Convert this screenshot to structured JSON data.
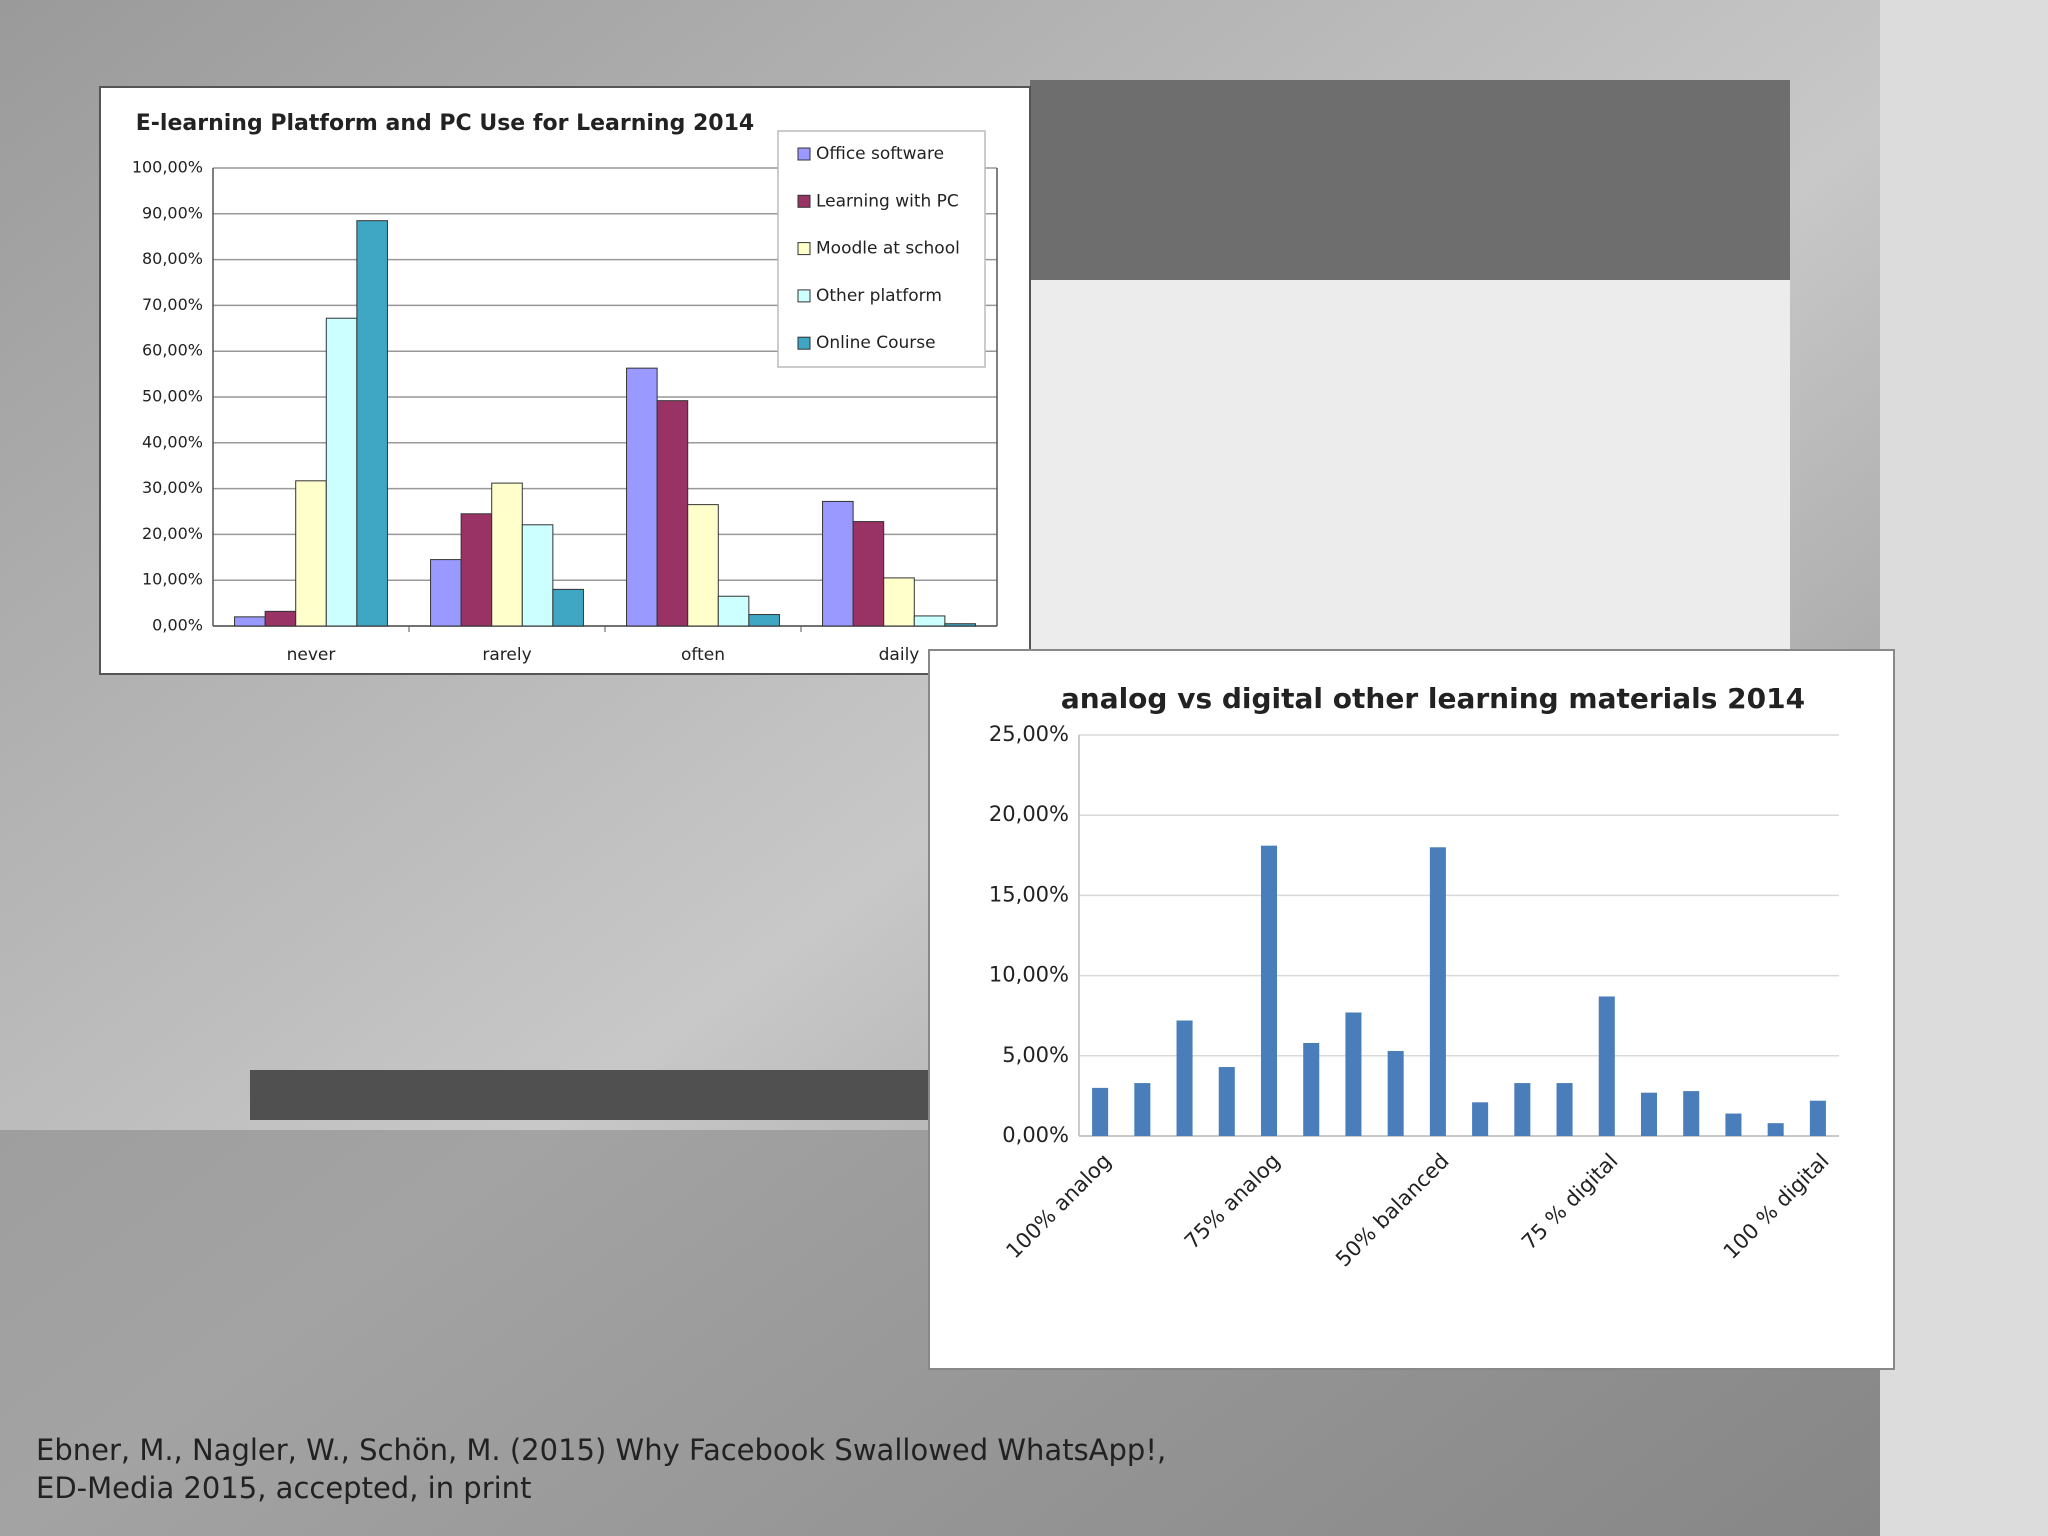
{
  "chart_data": [
    {
      "type": "bar",
      "title": "E-learning Platform and PC Use for Learning 2014",
      "categories": [
        "never",
        "rarely",
        "often",
        "daily"
      ],
      "series": [
        {
          "name": "Office software",
          "color": "#9999ff",
          "values": [
            2,
            14.5,
            56.3,
            27.2
          ]
        },
        {
          "name": "Learning with PC",
          "color": "#993366",
          "values": [
            3.2,
            24.5,
            49.2,
            22.8
          ]
        },
        {
          "name": "Moodle at school",
          "color": "#ffffcc",
          "values": [
            31.7,
            31.2,
            26.5,
            10.5
          ]
        },
        {
          "name": "Other platform",
          "color": "#ccffff",
          "values": [
            67.2,
            22.1,
            6.5,
            2.2
          ]
        },
        {
          "name": "Online Course",
          "color": "#3fa7c4",
          "values": [
            88.5,
            8,
            2.5,
            0.5
          ]
        }
      ],
      "ylim": [
        0,
        100
      ],
      "yticks": [
        {
          "value": 0,
          "label": "0,00%"
        },
        {
          "value": 10,
          "label": "10,00%"
        },
        {
          "value": 20,
          "label": "20,00%"
        },
        {
          "value": 30,
          "label": "30,00%"
        },
        {
          "value": 40,
          "label": "40,00%"
        },
        {
          "value": 50,
          "label": "50,00%"
        },
        {
          "value": 60,
          "label": "60,00%"
        },
        {
          "value": 70,
          "label": "70,00%"
        },
        {
          "value": 80,
          "label": "80,00%"
        },
        {
          "value": 90,
          "label": "90,00%"
        },
        {
          "value": 100,
          "label": "100,00%"
        }
      ],
      "grid": true,
      "legend": "top-right"
    },
    {
      "type": "bar",
      "title": "analog vs digital other learning materials 2014",
      "categories": [
        "100% analog",
        null,
        null,
        null,
        "75% analog",
        null,
        null,
        null,
        "50% balanced",
        null,
        null,
        null,
        "75 % digital",
        null,
        null,
        null,
        null,
        "100 % digital"
      ],
      "values": [
        3.0,
        3.3,
        7.2,
        4.3,
        18.1,
        5.8,
        7.7,
        5.3,
        18.0,
        2.1,
        3.3,
        3.3,
        8.7,
        2.7,
        2.8,
        1.4,
        0.8,
        2.2
      ],
      "color": "#4a7ebb",
      "ylim": [
        0,
        25
      ],
      "yticks": [
        {
          "value": 0,
          "label": "0,00%"
        },
        {
          "value": 5,
          "label": "5,00%"
        },
        {
          "value": 10,
          "label": "10,00%"
        },
        {
          "value": 15,
          "label": "15,00%"
        },
        {
          "value": 20,
          "label": "20,00%"
        },
        {
          "value": 25,
          "label": "25,00%"
        }
      ],
      "grid": true
    }
  ],
  "caption": [
    "Ebner, M., Nagler, W., Schön, M. (2015) Why Facebook Swallowed WhatsApp!,",
    "ED-Media 2015, accepted, in print"
  ]
}
